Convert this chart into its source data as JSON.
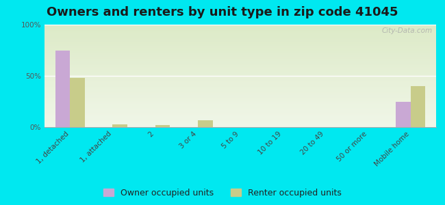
{
  "title": "Owners and renters by unit type in zip code 41045",
  "categories": [
    "1, detached",
    "1, attached",
    "2",
    "3 or 4",
    "5 to 9",
    "10 to 19",
    "20 to 49",
    "50 or more",
    "Mobile home"
  ],
  "owner_values": [
    75,
    0,
    0,
    0,
    0,
    0,
    0,
    0,
    25
  ],
  "renter_values": [
    48,
    3,
    2,
    7,
    0,
    0,
    0,
    0,
    40
  ],
  "owner_color": "#c9a8d4",
  "renter_color": "#c8cc8a",
  "bar_width": 0.35,
  "ylim": [
    0,
    100
  ],
  "yticks": [
    0,
    50,
    100
  ],
  "ytick_labels": [
    "0%",
    "50%",
    "100%"
  ],
  "background_outer": "#00e8f0",
  "background_plot": "#e8f0d8",
  "grid_color": "#ffffff",
  "watermark": "City-Data.com",
  "legend_owner": "Owner occupied units",
  "legend_renter": "Renter occupied units",
  "title_fontsize": 13,
  "tick_fontsize": 7.5,
  "legend_fontsize": 9
}
